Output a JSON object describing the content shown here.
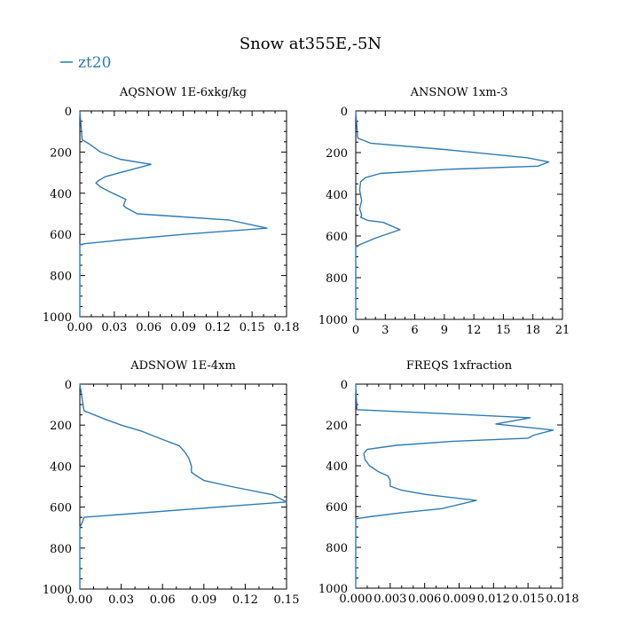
{
  "figure": {
    "title": "Snow at355E,-5N",
    "legend": [
      {
        "label": "zt20",
        "color": "#2f7bb2"
      }
    ]
  },
  "chart_data": [
    {
      "type": "line",
      "title": "AQSNOW  1E-6xkg/kg",
      "xlim": [
        0,
        0.18
      ],
      "ylim": [
        1000,
        0
      ],
      "xticks": [
        "0.00",
        "0.03",
        "0.06",
        "0.09",
        "0.12",
        "0.15",
        "0.18"
      ],
      "yticks": [
        "0",
        "200",
        "400",
        "600",
        "800",
        "1000"
      ],
      "series": [
        {
          "name": "zt20",
          "x": [
            0,
            0.002,
            0.008,
            0.018,
            0.035,
            0.062,
            0.035,
            0.022,
            0.016,
            0.014,
            0.018,
            0.025,
            0.04,
            0.038,
            0.04,
            0.05,
            0.09,
            0.13,
            0.163,
            0.09,
            0.04,
            0.005,
            0,
            0,
            0,
            0
          ],
          "y": [
            0,
            140,
            160,
            200,
            235,
            260,
            300,
            320,
            340,
            350,
            370,
            390,
            430,
            460,
            470,
            500,
            515,
            530,
            570,
            600,
            625,
            645,
            650,
            700,
            800,
            1000
          ]
        }
      ]
    },
    {
      "type": "line",
      "title": "ANSNOW  1xm-3",
      "xlim": [
        0,
        21
      ],
      "ylim": [
        1000,
        0
      ],
      "xticks": [
        "0",
        "3",
        "6",
        "9",
        "12",
        "15",
        "18",
        "21"
      ],
      "yticks": [
        "0",
        "200",
        "400",
        "600",
        "800",
        "1000"
      ],
      "series": [
        {
          "name": "zt20",
          "x": [
            0,
            0.2,
            1.5,
            9,
            17.5,
            19.6,
            18.5,
            9.5,
            2.5,
            1,
            0.5,
            0.4,
            0.6,
            0.4,
            0.6,
            0.5,
            1.2,
            2.8,
            4.5,
            2,
            0.5,
            0,
            0,
            0
          ],
          "y": [
            0,
            130,
            155,
            185,
            225,
            245,
            265,
            280,
            300,
            320,
            340,
            380,
            430,
            470,
            500,
            510,
            525,
            535,
            570,
            610,
            640,
            650,
            800,
            1000
          ]
        }
      ]
    },
    {
      "type": "line",
      "title": "ADSNOW  1E-4xm",
      "xlim": [
        0,
        0.15
      ],
      "ylim": [
        1000,
        0
      ],
      "xticks": [
        "0.00",
        "0.03",
        "0.06",
        "0.09",
        "0.12",
        "0.15"
      ],
      "yticks": [
        "0",
        "200",
        "400",
        "600",
        "800",
        "1000"
      ],
      "series": [
        {
          "name": "zt20",
          "x": [
            0,
            0.003,
            0.018,
            0.03,
            0.045,
            0.06,
            0.072,
            0.076,
            0.079,
            0.081,
            0.081,
            0.083,
            0.09,
            0.11,
            0.14,
            0.15,
            0.08,
            0.003,
            0.002,
            0,
            0,
            0
          ],
          "y": [
            0,
            130,
            170,
            200,
            230,
            270,
            300,
            330,
            360,
            400,
            430,
            440,
            470,
            500,
            540,
            575,
            610,
            650,
            670,
            700,
            800,
            1000
          ]
        }
      ]
    },
    {
      "type": "line",
      "title": "FREQS  1xfraction",
      "xlim": [
        0,
        0.018
      ],
      "ylim": [
        1000,
        0
      ],
      "xticks": [
        "0.000",
        "0.003",
        "0.006",
        "0.009",
        "0.012",
        "0.015",
        "0.018"
      ],
      "yticks": [
        "0",
        "200",
        "400",
        "600",
        "800",
        "1000"
      ],
      "series": [
        {
          "name": "zt20",
          "x": [
            0,
            0.0001,
            0.008,
            0.0152,
            0.0122,
            0.0172,
            0.0155,
            0.015,
            0.0085,
            0.0035,
            0.001,
            0.0007,
            0.0008,
            0.0012,
            0.002,
            0.0028,
            0.003,
            0.003,
            0.004,
            0.006,
            0.0105,
            0.0075,
            0.004,
            0.0012,
            0,
            0,
            0
          ],
          "y": [
            0,
            125,
            145,
            165,
            195,
            225,
            250,
            265,
            280,
            300,
            320,
            340,
            370,
            400,
            430,
            450,
            470,
            500,
            520,
            540,
            570,
            610,
            630,
            650,
            660,
            800,
            1000
          ]
        }
      ]
    }
  ]
}
